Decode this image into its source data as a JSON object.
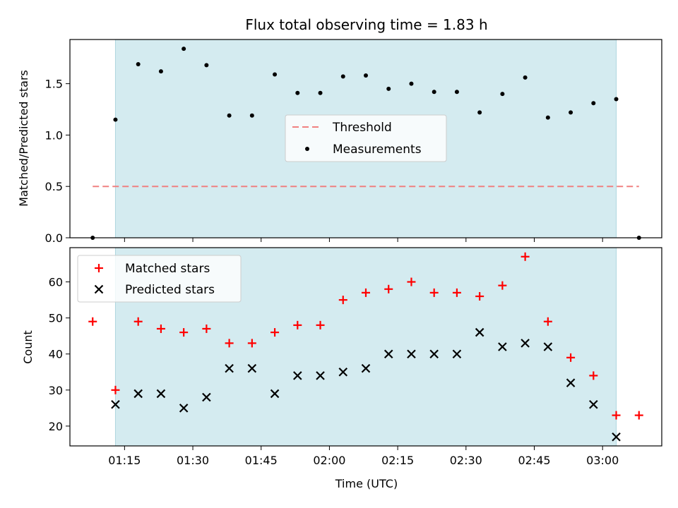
{
  "chart_data": [
    {
      "type": "scatter",
      "title": "Flux total observing time = 1.83 h",
      "ylabel": "Matched/Predicted stars",
      "xlim": [
        "01:03",
        "03:13"
      ],
      "ylim": [
        0,
        1.93
      ],
      "y_ticks": [
        0.0,
        0.5,
        1.0,
        1.5
      ],
      "y_tick_labels": [
        "0.0",
        "0.5",
        "1.0",
        "1.5"
      ],
      "shaded_span": [
        "01:13",
        "03:03"
      ],
      "shaded_color": "#d4ebf0",
      "legend_position": "center",
      "legend": [
        "Threshold",
        "Measurements"
      ],
      "threshold": {
        "name": "Threshold",
        "value": 0.5,
        "x_range": [
          "01:08",
          "03:08"
        ],
        "color": "#f08080",
        "style": "dashed"
      },
      "series": [
        {
          "name": "Measurements",
          "color": "#000000",
          "marker": "dot",
          "x": [
            "01:08",
            "01:13",
            "01:18",
            "01:23",
            "01:28",
            "01:33",
            "01:38",
            "01:43",
            "01:48",
            "01:53",
            "01:58",
            "02:03",
            "02:08",
            "02:13",
            "02:18",
            "02:23",
            "02:28",
            "02:33",
            "02:38",
            "02:43",
            "02:48",
            "02:53",
            "02:58",
            "03:03",
            "03:08"
          ],
          "values": [
            0.0,
            1.15,
            1.69,
            1.62,
            1.84,
            1.68,
            1.19,
            1.19,
            1.59,
            1.41,
            1.41,
            1.57,
            1.58,
            1.45,
            1.5,
            1.42,
            1.42,
            1.22,
            1.4,
            1.56,
            1.17,
            1.22,
            1.31,
            1.35,
            0.0
          ]
        }
      ]
    },
    {
      "type": "scatter",
      "xlabel": "Time (UTC)",
      "ylabel": "Count",
      "xlim": [
        "01:03",
        "03:13"
      ],
      "ylim": [
        14.5,
        69.5
      ],
      "y_ticks": [
        20,
        30,
        40,
        50,
        60
      ],
      "y_tick_labels": [
        "20",
        "30",
        "40",
        "50",
        "60"
      ],
      "x_ticks": [
        "01:15",
        "01:30",
        "01:45",
        "02:00",
        "02:15",
        "02:30",
        "02:45",
        "03:00"
      ],
      "x_tick_labels": [
        "01:15",
        "01:30",
        "01:45",
        "02:00",
        "02:15",
        "02:30",
        "02:45",
        "03:00"
      ],
      "shaded_span": [
        "01:13",
        "03:03"
      ],
      "shaded_color": "#d4ebf0",
      "legend_position": "top-left",
      "legend": [
        "Matched stars",
        "Predicted stars"
      ],
      "series": [
        {
          "name": "Matched stars",
          "color": "#ff0000",
          "marker": "plus",
          "x": [
            "01:08",
            "01:13",
            "01:18",
            "01:23",
            "01:28",
            "01:33",
            "01:38",
            "01:43",
            "01:48",
            "01:53",
            "01:58",
            "02:03",
            "02:08",
            "02:13",
            "02:18",
            "02:23",
            "02:28",
            "02:33",
            "02:38",
            "02:43",
            "02:48",
            "02:53",
            "02:58",
            "03:03",
            "03:08"
          ],
          "values": [
            49,
            30,
            49,
            47,
            46,
            47,
            43,
            43,
            46,
            48,
            48,
            55,
            57,
            58,
            60,
            57,
            57,
            56,
            59,
            67,
            49,
            39,
            34,
            23,
            23
          ]
        },
        {
          "name": "Predicted stars",
          "color": "#000000",
          "marker": "x",
          "x": [
            "01:13",
            "01:18",
            "01:23",
            "01:28",
            "01:33",
            "01:38",
            "01:43",
            "01:48",
            "01:53",
            "01:58",
            "02:03",
            "02:08",
            "02:13",
            "02:18",
            "02:23",
            "02:28",
            "02:33",
            "02:38",
            "02:43",
            "02:48",
            "02:53",
            "02:58",
            "03:03"
          ],
          "values": [
            26,
            29,
            29,
            25,
            28,
            36,
            36,
            29,
            34,
            34,
            35,
            36,
            40,
            40,
            40,
            40,
            46,
            42,
            43,
            42,
            32,
            26,
            17
          ]
        }
      ]
    }
  ]
}
